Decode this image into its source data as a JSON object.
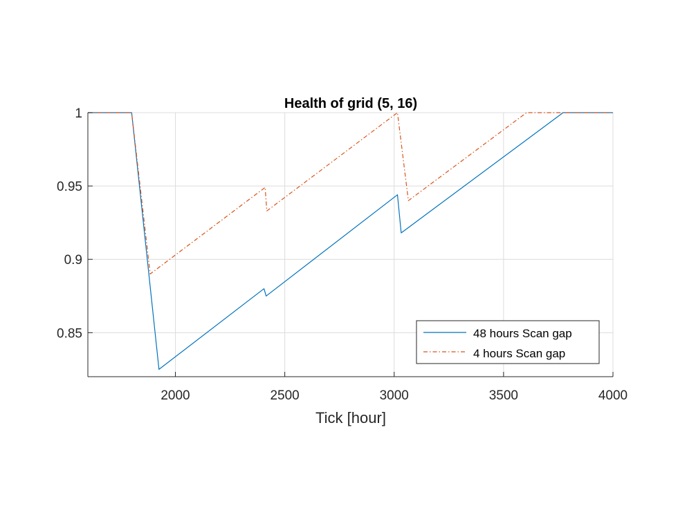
{
  "chart_data": {
    "type": "line",
    "title": "Health of grid (5, 16)",
    "xlabel": "Tick [hour]",
    "ylabel": "",
    "xlim": [
      1600,
      4000
    ],
    "ylim": [
      0.82,
      1.0
    ],
    "xticks": [
      2000,
      2500,
      3000,
      3500,
      4000
    ],
    "xtick_labels": [
      "2000",
      "2500",
      "3000",
      "3500",
      "4000"
    ],
    "yticks": [
      0.85,
      0.9,
      0.95,
      1.0
    ],
    "ytick_labels": [
      "0.85",
      "0.9",
      "0.95",
      "1"
    ],
    "grid": true,
    "legend_position": "bottom-right",
    "series": [
      {
        "name": "48 hours Scan gap",
        "color": "#0072BD",
        "line_style": "solid",
        "x": [
          1600,
          1800,
          1925,
          2405,
          2415,
          3015,
          3032,
          3772,
          4000
        ],
        "y": [
          1.0,
          1.0,
          0.825,
          0.88,
          0.875,
          0.944,
          0.918,
          1.0,
          1.0
        ]
      },
      {
        "name": "4 hours Scan gap",
        "color": "#D95319",
        "line_style": "dashdot",
        "x": [
          1600,
          1800,
          1885,
          2410,
          2418,
          3015,
          3065,
          3605,
          4000
        ],
        "y": [
          1.0,
          1.0,
          0.89,
          0.949,
          0.933,
          1.0,
          0.94,
          1.0,
          1.0
        ]
      }
    ]
  }
}
